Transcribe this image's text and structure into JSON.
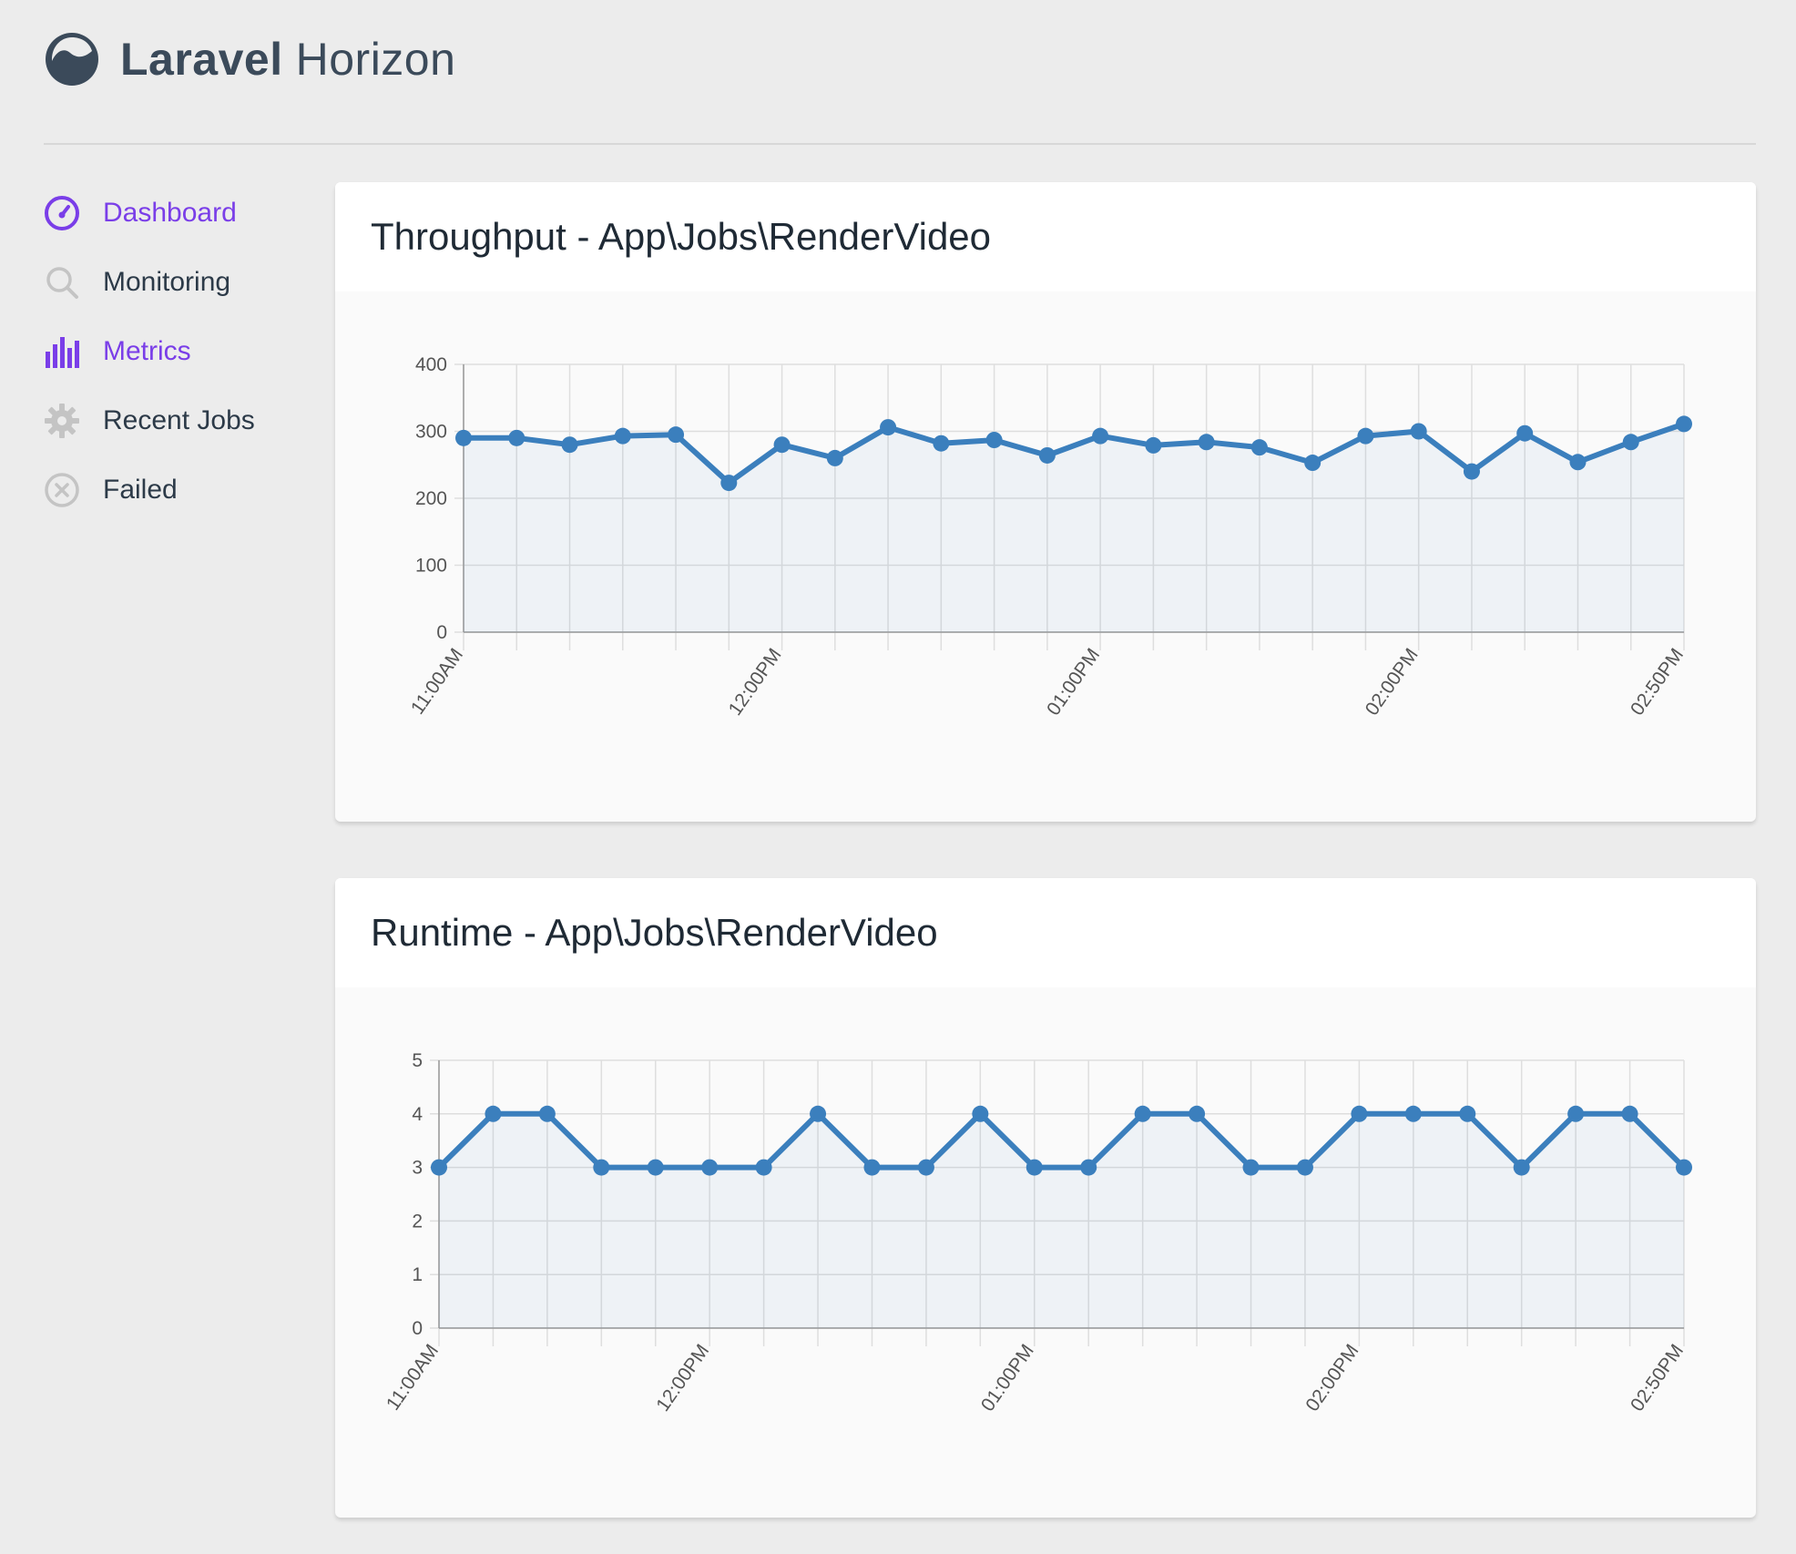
{
  "brand": {
    "bold": "Laravel",
    "light": "Horizon"
  },
  "sidebar": {
    "items": [
      {
        "label": "Dashboard",
        "icon": "dashboard-gauge-icon",
        "active": true
      },
      {
        "label": "Monitoring",
        "icon": "search-icon",
        "active": false
      },
      {
        "label": "Metrics",
        "icon": "bar-chart-icon",
        "active": true
      },
      {
        "label": "Recent Jobs",
        "icon": "gear-icon",
        "active": false
      },
      {
        "label": "Failed",
        "icon": "close-circle-icon",
        "active": false
      }
    ]
  },
  "colors": {
    "accent": "#7a3ee8",
    "series": "#3b7fbd"
  },
  "chart_data": [
    {
      "type": "line",
      "title": "Throughput - App\\Jobs\\RenderVideo",
      "ylim": [
        0,
        400
      ],
      "yticks": [
        0,
        100,
        200,
        300,
        400
      ],
      "xtick_labels": [
        {
          "index": 0,
          "label": "11:00AM"
        },
        {
          "index": 6,
          "label": "12:00PM"
        },
        {
          "index": 12,
          "label": "01:00PM"
        },
        {
          "index": 18,
          "label": "02:00PM"
        },
        {
          "index": 23,
          "label": "02:50PM"
        }
      ],
      "grid": true,
      "values": [
        290,
        290,
        280,
        293,
        295,
        223,
        280,
        260,
        306,
        282,
        287,
        264,
        293,
        279,
        284,
        276,
        253,
        293,
        300,
        240,
        297,
        254,
        284,
        311
      ]
    },
    {
      "type": "line",
      "title": "Runtime - App\\Jobs\\RenderVideo",
      "ylim": [
        0,
        5
      ],
      "yticks": [
        0,
        1,
        2,
        3,
        4,
        5
      ],
      "xtick_labels": [
        {
          "index": 0,
          "label": "11:00AM"
        },
        {
          "index": 5,
          "label": "12:00PM"
        },
        {
          "index": 11,
          "label": "01:00PM"
        },
        {
          "index": 17,
          "label": "02:00PM"
        },
        {
          "index": 23,
          "label": "02:50PM"
        }
      ],
      "grid": true,
      "values": [
        3,
        4,
        4,
        3,
        3,
        3,
        3,
        4,
        3,
        3,
        4,
        3,
        3,
        4,
        4,
        3,
        3,
        4,
        4,
        4,
        3,
        4,
        4,
        3
      ]
    }
  ]
}
